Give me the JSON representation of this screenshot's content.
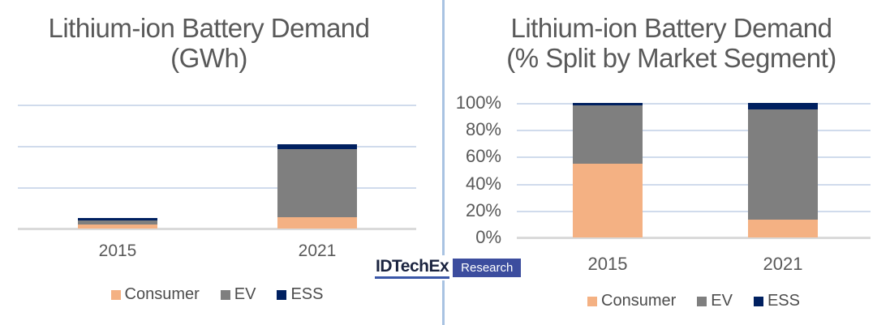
{
  "chart_data": [
    {
      "type": "bar",
      "stacked": true,
      "title": "Lithium-ion Battery Demand (GWh)",
      "title_line1": "Lithium-ion Battery Demand",
      "title_line2": "(GWh)",
      "categories": [
        "2015",
        "2021"
      ],
      "series": [
        {
          "name": "Consumer",
          "color": "#F4B183",
          "values": [
            10,
            27
          ]
        },
        {
          "name": "EV",
          "color": "#7F7F7F",
          "values": [
            10,
            166
          ]
        },
        {
          "name": "ESS",
          "color": "#002060",
          "values": [
            5,
            11
          ]
        }
      ],
      "xlabel": "",
      "ylabel": "",
      "ylim": [
        0,
        300
      ],
      "gridline_values": [
        100,
        200,
        300
      ],
      "ytick_labels": [],
      "ytick_values": [],
      "note": "y-axis has no tick labels; values are estimates in GWh read against unlabeled gridlines (one division = 100)",
      "grid": true,
      "legend_position": "bottom"
    },
    {
      "type": "bar",
      "stacked": true,
      "title": "Lithium-ion Battery Demand (% Split by Market Segment)",
      "title_line1": "Lithium-ion Battery Demand",
      "title_line2": "(% Split by Market Segment)",
      "categories": [
        "2015",
        "2021"
      ],
      "series": [
        {
          "name": "Consumer",
          "color": "#F4B183",
          "values": [
            55,
            13
          ]
        },
        {
          "name": "EV",
          "color": "#7F7F7F",
          "values": [
            43,
            82
          ]
        },
        {
          "name": "ESS",
          "color": "#002060",
          "values": [
            2,
            5
          ]
        }
      ],
      "xlabel": "",
      "ylabel": "",
      "ylim": [
        0,
        100
      ],
      "gridline_values": [
        20,
        40,
        60,
        80,
        100
      ],
      "ytick_labels": [
        "0%",
        "20%",
        "40%",
        "60%",
        "80%",
        "100%"
      ],
      "ytick_values": [
        0,
        20,
        40,
        60,
        80,
        100
      ],
      "grid": true,
      "legend_position": "bottom"
    }
  ],
  "logo": {
    "brand": "IDTechEx",
    "sub": "Research"
  },
  "colors": {
    "consumer": "#F4B183",
    "ev": "#7F7F7F",
    "ess": "#002060",
    "gridline": "#D0DBEC",
    "axis_line": "#DADADA",
    "divider": "#A9C3E2",
    "title_text": "#595959",
    "legend_text": "#4D4D4D",
    "logo_box": "#3C4D9E",
    "logo_text": "#1B2440",
    "logo_underline": "#3A57A8"
  }
}
